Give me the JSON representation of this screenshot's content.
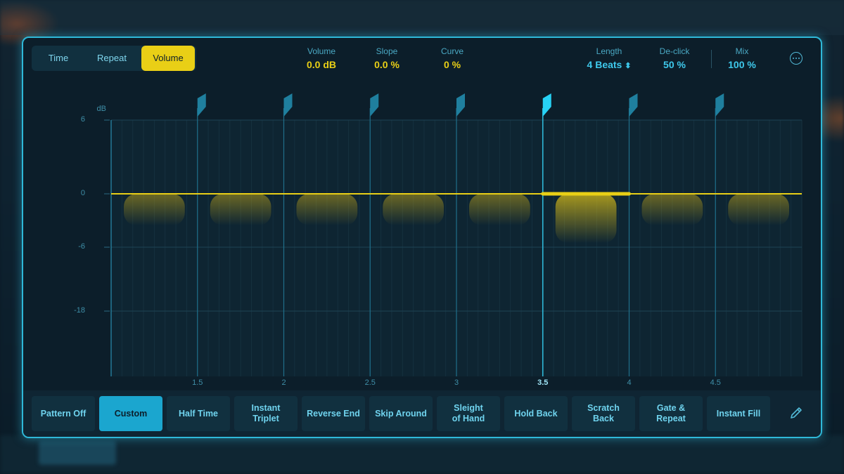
{
  "tabs": [
    {
      "label": "Time",
      "active": false
    },
    {
      "label": "Repeat",
      "active": false
    },
    {
      "label": "Volume",
      "active": true
    }
  ],
  "params": {
    "volume": {
      "label": "Volume",
      "value": "0.0 dB"
    },
    "slope": {
      "label": "Slope",
      "value": "0.0 %"
    },
    "curve": {
      "label": "Curve",
      "value": "0 %"
    },
    "length": {
      "label": "Length",
      "value": "4 Beats"
    },
    "declick": {
      "label": "De-click",
      "value": "50 %"
    },
    "mix": {
      "label": "Mix",
      "value": "100 %"
    }
  },
  "icons": {
    "more": "ellipsis-circle-icon",
    "length_stepper": "up-down-chevron-icon",
    "marker": "flag-marker-icon",
    "pencil": "pencil-icon"
  },
  "graph": {
    "unit_label": "dB",
    "y_ticks": [
      {
        "label": "6",
        "db": 6
      },
      {
        "label": "0",
        "db": 0
      },
      {
        "label": "-6",
        "db": -6
      },
      {
        "label": "-18",
        "db": -18
      }
    ],
    "x_ticks": [
      {
        "label": "1.5",
        "beat": 1.5,
        "active": false
      },
      {
        "label": "2",
        "beat": 2,
        "active": false
      },
      {
        "label": "2.5",
        "beat": 2.5,
        "active": false
      },
      {
        "label": "3",
        "beat": 3,
        "active": false
      },
      {
        "label": "3.5",
        "beat": 3.5,
        "active": true
      },
      {
        "label": "4",
        "beat": 4,
        "active": false
      },
      {
        "label": "4.5",
        "beat": 4.5,
        "active": false
      }
    ],
    "beat_range": [
      1,
      5
    ],
    "selected_segment": {
      "start_beat": 3.5,
      "end_beat": 4
    },
    "level_db": 0
  },
  "presets": [
    {
      "label": "Pattern Off",
      "active": false
    },
    {
      "label": "Custom",
      "active": true
    },
    {
      "label": "Half Time",
      "active": false
    },
    {
      "label": "Instant\nTriplet",
      "active": false
    },
    {
      "label": "Reverse End",
      "active": false
    },
    {
      "label": "Skip Around",
      "active": false
    },
    {
      "label": "Sleight\nof Hand",
      "active": false
    },
    {
      "label": "Hold Back",
      "active": false
    },
    {
      "label": "Scratch\nBack",
      "active": false
    },
    {
      "label": "Gate &\nRepeat",
      "active": false
    },
    {
      "label": "Instant Fill",
      "active": false
    }
  ],
  "colors": {
    "accent_yellow": "#e9cf16",
    "accent_cyan": "#2fb8d8",
    "panel_bg": "#0c1e2a"
  }
}
